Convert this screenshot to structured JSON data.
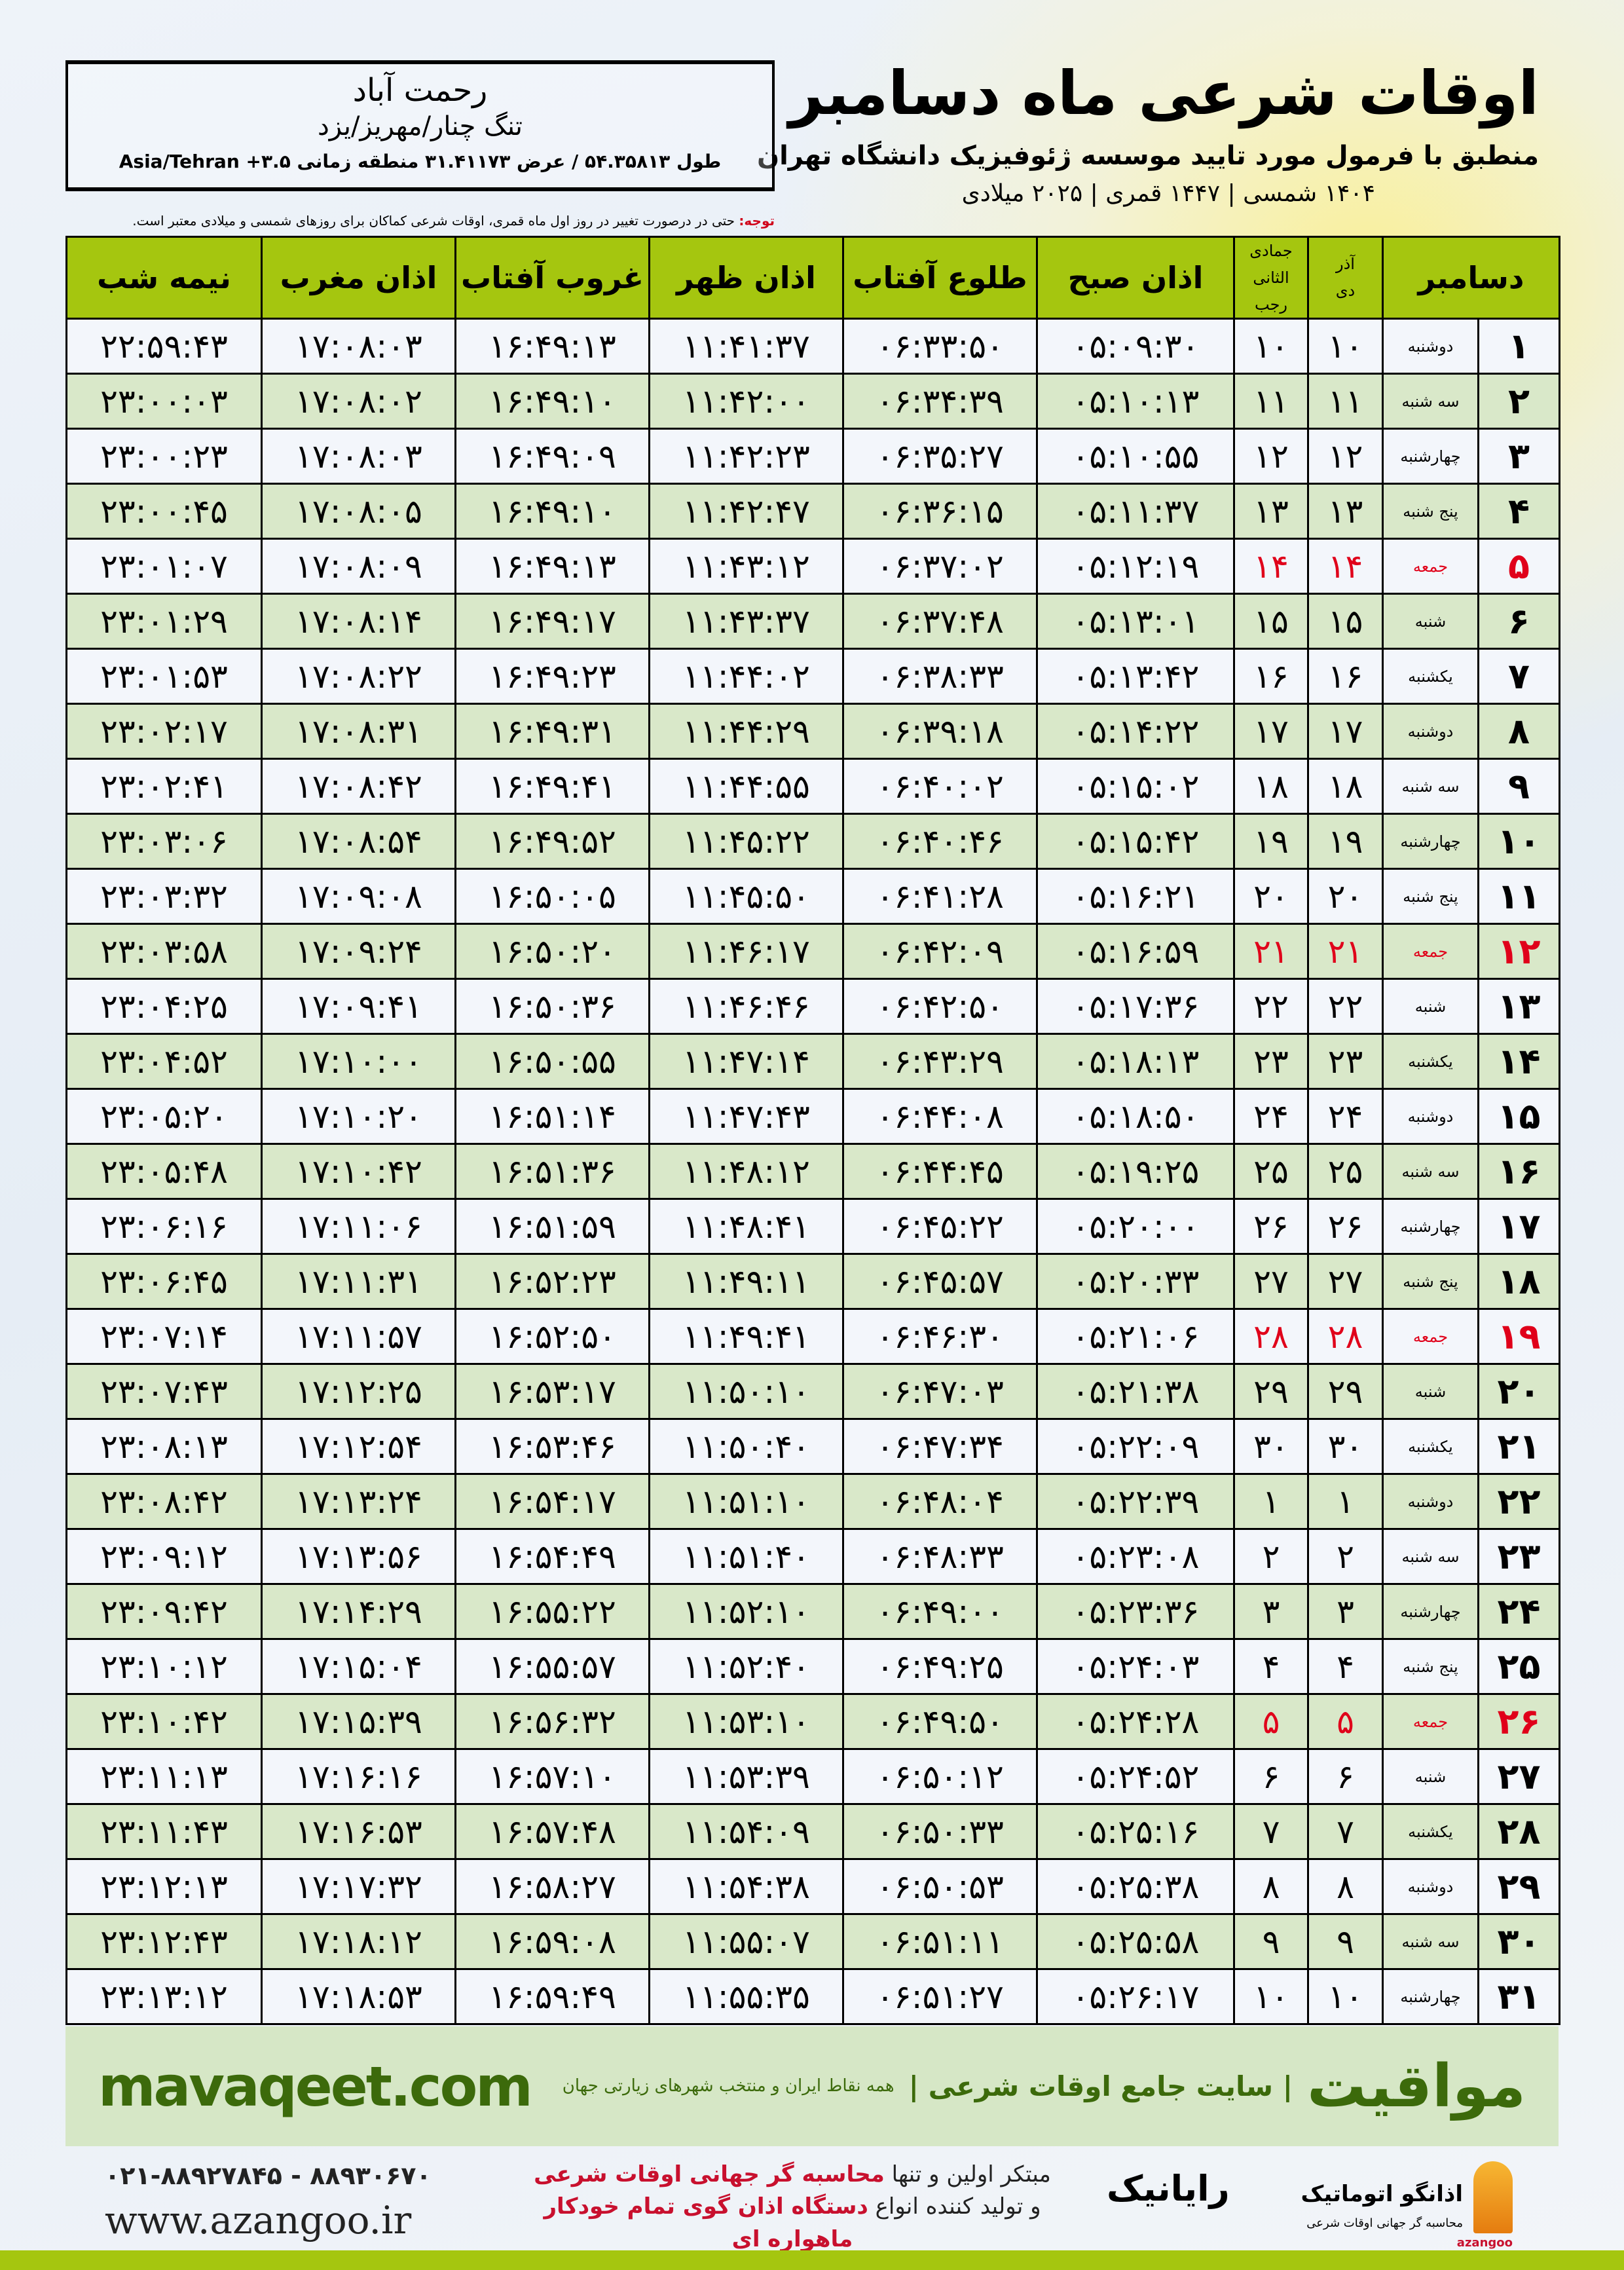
{
  "header": {
    "title": "اوقات شرعی ماه دسامبر",
    "subtitle": "منطبق با فرمول مورد تایید موسسه ژئوفیزیک دانشگاه تهران",
    "dateline": "۱۴۰۴ شمسی | ۱۴۴۷ قمری | ۲۰۲۵ میلادی"
  },
  "location": {
    "name": "رحمت آباد",
    "region": "تنگ چنار/مهریز/یزد",
    "coords": "طول ۵۴.۳۵۸۱۳ / عرض ۳۱.۴۱۱۷۳ منطقه زمانی ۳.۵+ Asia/Tehran"
  },
  "note": {
    "label": "توجه:",
    "text": " حتی در درصورت تغییر در روز اول ماه قمری، اوقات شرعی کماکان برای روزهای شمسی و میلادی معتبر است."
  },
  "table": {
    "headers": {
      "month": "دسامبر",
      "shamsi_top": "آذر",
      "shamsi_bottom": "دی",
      "qamari_top": "جمادی الثانی",
      "qamari_bottom": "رجب",
      "fajr": "اذان صبح",
      "sunrise": "طلوع آفتاب",
      "dhuhr": "اذان ظهر",
      "sunset": "غروب آفتاب",
      "maghrib": "اذان مغرب",
      "midnight": "نیمه شب"
    },
    "rows": [
      {
        "day": "۱",
        "weekday": "دوشنبه",
        "shamsi": "۱۰",
        "qamari": "۱۰",
        "fajr": "۰۵:۰۹:۳۰",
        "sunrise": "۰۶:۳۳:۵۰",
        "dhuhr": "۱۱:۴۱:۳۷",
        "sunset": "۱۶:۴۹:۱۳",
        "maghrib": "۱۷:۰۸:۰۳",
        "midnight": "۲۲:۵۹:۴۳",
        "holiday": false
      },
      {
        "day": "۲",
        "weekday": "سه شنبه",
        "shamsi": "۱۱",
        "qamari": "۱۱",
        "fajr": "۰۵:۱۰:۱۳",
        "sunrise": "۰۶:۳۴:۳۹",
        "dhuhr": "۱۱:۴۲:۰۰",
        "sunset": "۱۶:۴۹:۱۰",
        "maghrib": "۱۷:۰۸:۰۲",
        "midnight": "۲۳:۰۰:۰۳",
        "holiday": false
      },
      {
        "day": "۳",
        "weekday": "چهارشنبه",
        "shamsi": "۱۲",
        "qamari": "۱۲",
        "fajr": "۰۵:۱۰:۵۵",
        "sunrise": "۰۶:۳۵:۲۷",
        "dhuhr": "۱۱:۴۲:۲۳",
        "sunset": "۱۶:۴۹:۰۹",
        "maghrib": "۱۷:۰۸:۰۳",
        "midnight": "۲۳:۰۰:۲۳",
        "holiday": false
      },
      {
        "day": "۴",
        "weekday": "پنج شنبه",
        "shamsi": "۱۳",
        "qamari": "۱۳",
        "fajr": "۰۵:۱۱:۳۷",
        "sunrise": "۰۶:۳۶:۱۵",
        "dhuhr": "۱۱:۴۲:۴۷",
        "sunset": "۱۶:۴۹:۱۰",
        "maghrib": "۱۷:۰۸:۰۵",
        "midnight": "۲۳:۰۰:۴۵",
        "holiday": false
      },
      {
        "day": "۵",
        "weekday": "جمعه",
        "shamsi": "۱۴",
        "qamari": "۱۴",
        "fajr": "۰۵:۱۲:۱۹",
        "sunrise": "۰۶:۳۷:۰۲",
        "dhuhr": "۱۱:۴۳:۱۲",
        "sunset": "۱۶:۴۹:۱۳",
        "maghrib": "۱۷:۰۸:۰۹",
        "midnight": "۲۳:۰۱:۰۷",
        "holiday": true
      },
      {
        "day": "۶",
        "weekday": "شنبه",
        "shamsi": "۱۵",
        "qamari": "۱۵",
        "fajr": "۰۵:۱۳:۰۱",
        "sunrise": "۰۶:۳۷:۴۸",
        "dhuhr": "۱۱:۴۳:۳۷",
        "sunset": "۱۶:۴۹:۱۷",
        "maghrib": "۱۷:۰۸:۱۴",
        "midnight": "۲۳:۰۱:۲۹",
        "holiday": false
      },
      {
        "day": "۷",
        "weekday": "یکشنبه",
        "shamsi": "۱۶",
        "qamari": "۱۶",
        "fajr": "۰۵:۱۳:۴۲",
        "sunrise": "۰۶:۳۸:۳۳",
        "dhuhr": "۱۱:۴۴:۰۲",
        "sunset": "۱۶:۴۹:۲۳",
        "maghrib": "۱۷:۰۸:۲۲",
        "midnight": "۲۳:۰۱:۵۳",
        "holiday": false
      },
      {
        "day": "۸",
        "weekday": "دوشنبه",
        "shamsi": "۱۷",
        "qamari": "۱۷",
        "fajr": "۰۵:۱۴:۲۲",
        "sunrise": "۰۶:۳۹:۱۸",
        "dhuhr": "۱۱:۴۴:۲۹",
        "sunset": "۱۶:۴۹:۳۱",
        "maghrib": "۱۷:۰۸:۳۱",
        "midnight": "۲۳:۰۲:۱۷",
        "holiday": false
      },
      {
        "day": "۹",
        "weekday": "سه شنبه",
        "shamsi": "۱۸",
        "qamari": "۱۸",
        "fajr": "۰۵:۱۵:۰۲",
        "sunrise": "۰۶:۴۰:۰۲",
        "dhuhr": "۱۱:۴۴:۵۵",
        "sunset": "۱۶:۴۹:۴۱",
        "maghrib": "۱۷:۰۸:۴۲",
        "midnight": "۲۳:۰۲:۴۱",
        "holiday": false
      },
      {
        "day": "۱۰",
        "weekday": "چهارشنبه",
        "shamsi": "۱۹",
        "qamari": "۱۹",
        "fajr": "۰۵:۱۵:۴۲",
        "sunrise": "۰۶:۴۰:۴۶",
        "dhuhr": "۱۱:۴۵:۲۲",
        "sunset": "۱۶:۴۹:۵۲",
        "maghrib": "۱۷:۰۸:۵۴",
        "midnight": "۲۳:۰۳:۰۶",
        "holiday": false
      },
      {
        "day": "۱۱",
        "weekday": "پنج شنبه",
        "shamsi": "۲۰",
        "qamari": "۲۰",
        "fajr": "۰۵:۱۶:۲۱",
        "sunrise": "۰۶:۴۱:۲۸",
        "dhuhr": "۱۱:۴۵:۵۰",
        "sunset": "۱۶:۵۰:۰۵",
        "maghrib": "۱۷:۰۹:۰۸",
        "midnight": "۲۳:۰۳:۳۲",
        "holiday": false
      },
      {
        "day": "۱۲",
        "weekday": "جمعه",
        "shamsi": "۲۱",
        "qamari": "۲۱",
        "fajr": "۰۵:۱۶:۵۹",
        "sunrise": "۰۶:۴۲:۰۹",
        "dhuhr": "۱۱:۴۶:۱۷",
        "sunset": "۱۶:۵۰:۲۰",
        "maghrib": "۱۷:۰۹:۲۴",
        "midnight": "۲۳:۰۳:۵۸",
        "holiday": true
      },
      {
        "day": "۱۳",
        "weekday": "شنبه",
        "shamsi": "۲۲",
        "qamari": "۲۲",
        "fajr": "۰۵:۱۷:۳۶",
        "sunrise": "۰۶:۴۲:۵۰",
        "dhuhr": "۱۱:۴۶:۴۶",
        "sunset": "۱۶:۵۰:۳۶",
        "maghrib": "۱۷:۰۹:۴۱",
        "midnight": "۲۳:۰۴:۲۵",
        "holiday": false
      },
      {
        "day": "۱۴",
        "weekday": "یکشنبه",
        "shamsi": "۲۳",
        "qamari": "۲۳",
        "fajr": "۰۵:۱۸:۱۳",
        "sunrise": "۰۶:۴۳:۲۹",
        "dhuhr": "۱۱:۴۷:۱۴",
        "sunset": "۱۶:۵۰:۵۵",
        "maghrib": "۱۷:۱۰:۰۰",
        "midnight": "۲۳:۰۴:۵۲",
        "holiday": false
      },
      {
        "day": "۱۵",
        "weekday": "دوشنبه",
        "shamsi": "۲۴",
        "qamari": "۲۴",
        "fajr": "۰۵:۱۸:۵۰",
        "sunrise": "۰۶:۴۴:۰۸",
        "dhuhr": "۱۱:۴۷:۴۳",
        "sunset": "۱۶:۵۱:۱۴",
        "maghrib": "۱۷:۱۰:۲۰",
        "midnight": "۲۳:۰۵:۲۰",
        "holiday": false
      },
      {
        "day": "۱۶",
        "weekday": "سه شنبه",
        "shamsi": "۲۵",
        "qamari": "۲۵",
        "fajr": "۰۵:۱۹:۲۵",
        "sunrise": "۰۶:۴۴:۴۵",
        "dhuhr": "۱۱:۴۸:۱۲",
        "sunset": "۱۶:۵۱:۳۶",
        "maghrib": "۱۷:۱۰:۴۲",
        "midnight": "۲۳:۰۵:۴۸",
        "holiday": false
      },
      {
        "day": "۱۷",
        "weekday": "چهارشنبه",
        "shamsi": "۲۶",
        "qamari": "۲۶",
        "fajr": "۰۵:۲۰:۰۰",
        "sunrise": "۰۶:۴۵:۲۲",
        "dhuhr": "۱۱:۴۸:۴۱",
        "sunset": "۱۶:۵۱:۵۹",
        "maghrib": "۱۷:۱۱:۰۶",
        "midnight": "۲۳:۰۶:۱۶",
        "holiday": false
      },
      {
        "day": "۱۸",
        "weekday": "پنج شنبه",
        "shamsi": "۲۷",
        "qamari": "۲۷",
        "fajr": "۰۵:۲۰:۳۳",
        "sunrise": "۰۶:۴۵:۵۷",
        "dhuhr": "۱۱:۴۹:۱۱",
        "sunset": "۱۶:۵۲:۲۳",
        "maghrib": "۱۷:۱۱:۳۱",
        "midnight": "۲۳:۰۶:۴۵",
        "holiday": false
      },
      {
        "day": "۱۹",
        "weekday": "جمعه",
        "shamsi": "۲۸",
        "qamari": "۲۸",
        "fajr": "۰۵:۲۱:۰۶",
        "sunrise": "۰۶:۴۶:۳۰",
        "dhuhr": "۱۱:۴۹:۴۱",
        "sunset": "۱۶:۵۲:۵۰",
        "maghrib": "۱۷:۱۱:۵۷",
        "midnight": "۲۳:۰۷:۱۴",
        "holiday": true
      },
      {
        "day": "۲۰",
        "weekday": "شنبه",
        "shamsi": "۲۹",
        "qamari": "۲۹",
        "fajr": "۰۵:۲۱:۳۸",
        "sunrise": "۰۶:۴۷:۰۳",
        "dhuhr": "۱۱:۵۰:۱۰",
        "sunset": "۱۶:۵۳:۱۷",
        "maghrib": "۱۷:۱۲:۲۵",
        "midnight": "۲۳:۰۷:۴۳",
        "holiday": false
      },
      {
        "day": "۲۱",
        "weekday": "یکشنبه",
        "shamsi": "۳۰",
        "qamari": "۳۰",
        "fajr": "۰۵:۲۲:۰۹",
        "sunrise": "۰۶:۴۷:۳۴",
        "dhuhr": "۱۱:۵۰:۴۰",
        "sunset": "۱۶:۵۳:۴۶",
        "maghrib": "۱۷:۱۲:۵۴",
        "midnight": "۲۳:۰۸:۱۳",
        "holiday": false
      },
      {
        "day": "۲۲",
        "weekday": "دوشنبه",
        "shamsi": "۱",
        "qamari": "۱",
        "fajr": "۰۵:۲۲:۳۹",
        "sunrise": "۰۶:۴۸:۰۴",
        "dhuhr": "۱۱:۵۱:۱۰",
        "sunset": "۱۶:۵۴:۱۷",
        "maghrib": "۱۷:۱۳:۲۴",
        "midnight": "۲۳:۰۸:۴۲",
        "holiday": false
      },
      {
        "day": "۲۳",
        "weekday": "سه شنبه",
        "shamsi": "۲",
        "qamari": "۲",
        "fajr": "۰۵:۲۳:۰۸",
        "sunrise": "۰۶:۴۸:۳۳",
        "dhuhr": "۱۱:۵۱:۴۰",
        "sunset": "۱۶:۵۴:۴۹",
        "maghrib": "۱۷:۱۳:۵۶",
        "midnight": "۲۳:۰۹:۱۲",
        "holiday": false
      },
      {
        "day": "۲۴",
        "weekday": "چهارشنبه",
        "shamsi": "۳",
        "qamari": "۳",
        "fajr": "۰۵:۲۳:۳۶",
        "sunrise": "۰۶:۴۹:۰۰",
        "dhuhr": "۱۱:۵۲:۱۰",
        "sunset": "۱۶:۵۵:۲۲",
        "maghrib": "۱۷:۱۴:۲۹",
        "midnight": "۲۳:۰۹:۴۲",
        "holiday": false
      },
      {
        "day": "۲۵",
        "weekday": "پنج شنبه",
        "shamsi": "۴",
        "qamari": "۴",
        "fajr": "۰۵:۲۴:۰۳",
        "sunrise": "۰۶:۴۹:۲۵",
        "dhuhr": "۱۱:۵۲:۴۰",
        "sunset": "۱۶:۵۵:۵۷",
        "maghrib": "۱۷:۱۵:۰۴",
        "midnight": "۲۳:۱۰:۱۲",
        "holiday": false
      },
      {
        "day": "۲۶",
        "weekday": "جمعه",
        "shamsi": "۵",
        "qamari": "۵",
        "fajr": "۰۵:۲۴:۲۸",
        "sunrise": "۰۶:۴۹:۵۰",
        "dhuhr": "۱۱:۵۳:۱۰",
        "sunset": "۱۶:۵۶:۳۲",
        "maghrib": "۱۷:۱۵:۳۹",
        "midnight": "۲۳:۱۰:۴۲",
        "holiday": true
      },
      {
        "day": "۲۷",
        "weekday": "شنبه",
        "shamsi": "۶",
        "qamari": "۶",
        "fajr": "۰۵:۲۴:۵۲",
        "sunrise": "۰۶:۵۰:۱۲",
        "dhuhr": "۱۱:۵۳:۳۹",
        "sunset": "۱۶:۵۷:۱۰",
        "maghrib": "۱۷:۱۶:۱۶",
        "midnight": "۲۳:۱۱:۱۳",
        "holiday": false
      },
      {
        "day": "۲۸",
        "weekday": "یکشنبه",
        "shamsi": "۷",
        "qamari": "۷",
        "fajr": "۰۵:۲۵:۱۶",
        "sunrise": "۰۶:۵۰:۳۳",
        "dhuhr": "۱۱:۵۴:۰۹",
        "sunset": "۱۶:۵۷:۴۸",
        "maghrib": "۱۷:۱۶:۵۳",
        "midnight": "۲۳:۱۱:۴۳",
        "holiday": false
      },
      {
        "day": "۲۹",
        "weekday": "دوشنبه",
        "shamsi": "۸",
        "qamari": "۸",
        "fajr": "۰۵:۲۵:۳۸",
        "sunrise": "۰۶:۵۰:۵۳",
        "dhuhr": "۱۱:۵۴:۳۸",
        "sunset": "۱۶:۵۸:۲۷",
        "maghrib": "۱۷:۱۷:۳۲",
        "midnight": "۲۳:۱۲:۱۳",
        "holiday": false
      },
      {
        "day": "۳۰",
        "weekday": "سه شنبه",
        "shamsi": "۹",
        "qamari": "۹",
        "fajr": "۰۵:۲۵:۵۸",
        "sunrise": "۰۶:۵۱:۱۱",
        "dhuhr": "۱۱:۵۵:۰۷",
        "sunset": "۱۶:۵۹:۰۸",
        "maghrib": "۱۷:۱۸:۱۲",
        "midnight": "۲۳:۱۲:۴۳",
        "holiday": false
      },
      {
        "day": "۳۱",
        "weekday": "چهارشنبه",
        "shamsi": "۱۰",
        "qamari": "۱۰",
        "fajr": "۰۵:۲۶:۱۷",
        "sunrise": "۰۶:۵۱:۲۷",
        "dhuhr": "۱۱:۵۵:۳۵",
        "sunset": "۱۶:۵۹:۴۹",
        "maghrib": "۱۷:۱۸:۵۳",
        "midnight": "۲۳:۱۳:۱۲",
        "holiday": false
      }
    ]
  },
  "band": {
    "site": "mavaqeet.com",
    "brand": "مواقیت",
    "brand_desc": "| سایت جامع اوقات شرعی |",
    "tagline": "همه نقاط ایران و منتخب شهرهای زیارتی جهان"
  },
  "footer": {
    "phones": "۰۲۱-۸۸۹۲۷۸۴۵ - ۸۸۹۳۰۶۷۰",
    "www": "www.azangoo.ir",
    "promo_line1_a": "مبتکر اولین و تنها ",
    "promo_line1_b": "محاسبه گر جهانی اوقات شرعی",
    "promo_line2_a": "و تولید کننده انواع ",
    "promo_line2_b": "دستگاه اذان گوی تمام خودکار ماهواره ای",
    "rayanik": "رایانیک",
    "azangoo_title": "اذانگو اتوماتیک",
    "azangoo_sub": "محاسبه گر جهانی اوقات شرعی",
    "azangoo_en": "azangoo"
  },
  "colors": {
    "header_green": "#a5c60f",
    "row_green": "#d9e8c9",
    "holiday_red": "#e0001a",
    "brand_green": "#3c6a0b"
  }
}
